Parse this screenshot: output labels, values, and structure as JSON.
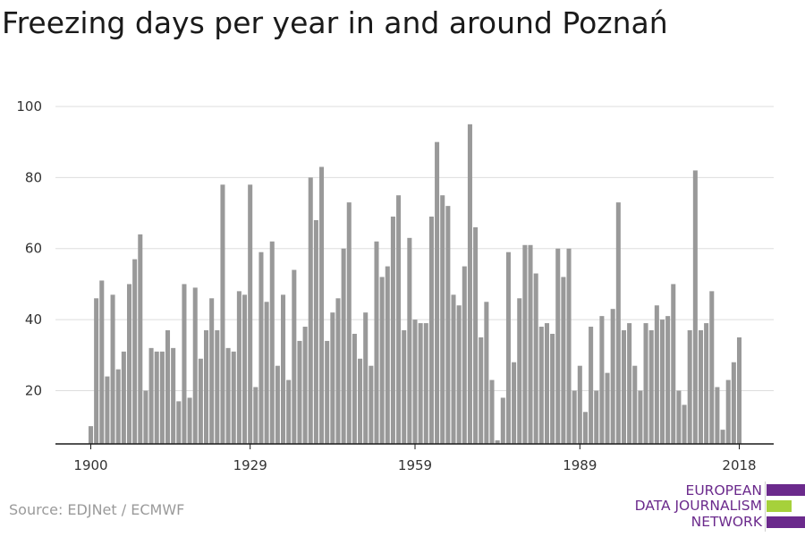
{
  "title": "Freezing days per year in and around Poznań",
  "source": "Source: EDJNet / ECMWF",
  "logo": {
    "lines": [
      "EUROPEAN",
      "DATA JOURNALISM",
      "NETWORK"
    ],
    "colors": {
      "primary": "#6b2a8c",
      "accent": "#a6d13b"
    }
  },
  "colors": {
    "bar": "#999999",
    "grid": "#dddddd",
    "axis": "#1a1a1a",
    "text": "#333333"
  },
  "chart_data": {
    "type": "bar",
    "title": "Freezing days per year in and around Poznań",
    "xlabel": "",
    "ylabel": "",
    "x_ticks": [
      1900,
      1929,
      1959,
      1989,
      2018
    ],
    "y_ticks": [
      20,
      40,
      60,
      80,
      100
    ],
    "ylim": [
      5,
      100
    ],
    "grid": true,
    "series": [
      {
        "x": [
          1900,
          1901,
          1902,
          1903,
          1904,
          1905,
          1906,
          1907,
          1908,
          1909,
          1910,
          1911,
          1912,
          1913,
          1914,
          1915,
          1916,
          1917,
          1918,
          1919,
          1920,
          1921,
          1922,
          1923,
          1924,
          1925,
          1926,
          1927,
          1928,
          1929,
          1930,
          1931,
          1932,
          1933,
          1934,
          1935,
          1936,
          1937,
          1938,
          1939,
          1940,
          1941,
          1942,
          1943,
          1944,
          1945,
          1946,
          1947,
          1948,
          1949,
          1950,
          1951,
          1952,
          1953,
          1954,
          1955,
          1956,
          1957,
          1958,
          1959,
          1960,
          1961,
          1962,
          1963,
          1964,
          1965,
          1966,
          1967,
          1968,
          1969,
          1970,
          1971,
          1972,
          1973,
          1974,
          1975,
          1976,
          1977,
          1978,
          1979,
          1980,
          1981,
          1982,
          1983,
          1984,
          1985,
          1986,
          1987,
          1988,
          1989,
          1990,
          1991,
          1992,
          1993,
          1994,
          1995,
          1996,
          1997,
          1998,
          1999,
          2000,
          2001,
          2002,
          2003,
          2004,
          2005,
          2006,
          2007,
          2008,
          2009,
          2010,
          2011,
          2012,
          2013,
          2014,
          2015,
          2016,
          2017,
          2018
        ],
        "values": [
          10,
          46,
          51,
          24,
          47,
          26,
          31,
          50,
          57,
          64,
          20,
          32,
          31,
          31,
          37,
          32,
          17,
          50,
          18,
          49,
          29,
          37,
          46,
          37,
          78,
          32,
          31,
          48,
          47,
          78,
          21,
          59,
          45,
          62,
          27,
          47,
          23,
          54,
          34,
          38,
          80,
          68,
          83,
          34,
          42,
          46,
          60,
          73,
          36,
          29,
          42,
          27,
          62,
          52,
          55,
          69,
          75,
          37,
          63,
          40,
          39,
          39,
          69,
          90,
          75,
          72,
          47,
          44,
          55,
          95,
          66,
          35,
          45,
          23,
          6,
          18,
          59,
          28,
          46,
          61,
          61,
          53,
          38,
          39,
          36,
          60,
          52,
          60,
          20,
          27,
          14,
          38,
          20,
          41,
          25,
          43,
          73,
          37,
          39,
          27,
          20,
          39,
          37,
          44,
          40,
          41,
          50,
          20,
          16,
          37,
          82,
          37,
          39,
          48,
          21,
          9,
          23,
          28,
          35
        ]
      }
    ]
  }
}
